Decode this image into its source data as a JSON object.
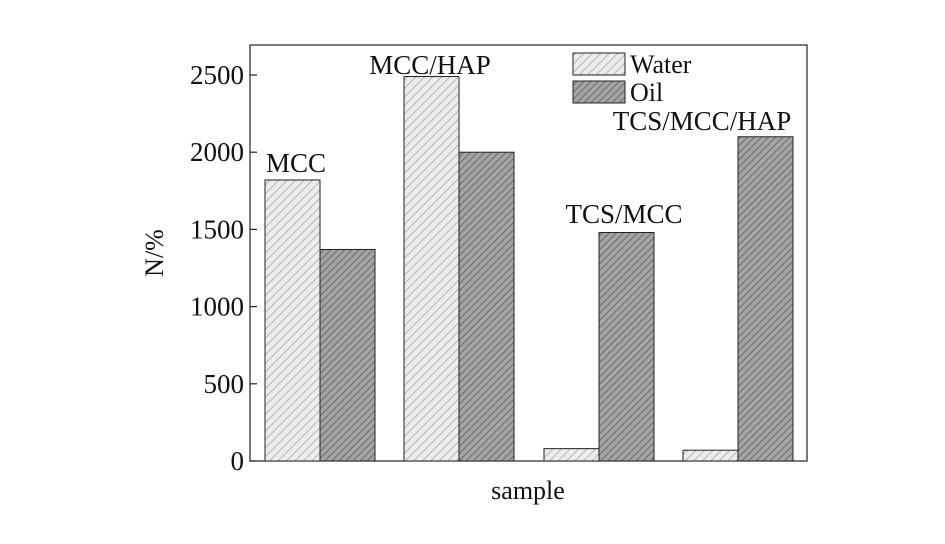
{
  "chart_data": {
    "type": "bar",
    "title": "",
    "xlabel": "sample",
    "ylabel": "N/%",
    "ylim": [
      0,
      2700
    ],
    "yticks": [
      0,
      500,
      1000,
      1500,
      2000,
      2500
    ],
    "ytick_labels": [
      "0",
      "500",
      "1000",
      "1500",
      "2000",
      "2500"
    ],
    "categories": [
      "MCC",
      "MCC/HAP",
      "TCS/MCC",
      "TCS/MCC/HAP"
    ],
    "series": [
      {
        "name": "Water",
        "values": [
          1820,
          2490,
          80,
          70
        ]
      },
      {
        "name": "Oil",
        "values": [
          1370,
          2000,
          1480,
          2100
        ]
      }
    ],
    "legend_position": "top-right",
    "grid": false
  },
  "colors": {
    "water_fill": "#ececec",
    "water_hatch": "#b5b5b5",
    "oil_fill": "#a4a4a4",
    "oil_hatch": "#6a6a6a",
    "stroke": "#222222"
  }
}
